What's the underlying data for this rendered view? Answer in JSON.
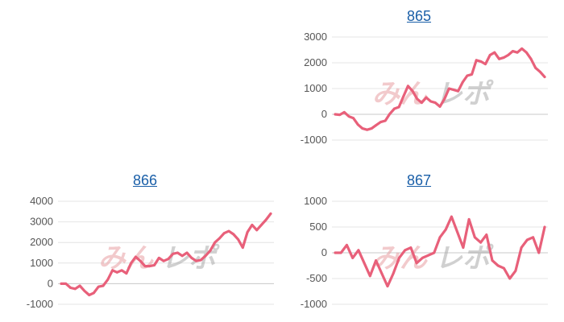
{
  "chart_data": [
    {
      "type": "line",
      "title": "865",
      "ylim": [
        -1000,
        3000
      ],
      "yticks": [
        "-1000",
        "0",
        "1000",
        "2000",
        "3000"
      ],
      "grid": true,
      "series": [
        {
          "values": [
            0,
            -20,
            80,
            -80,
            -150,
            -400,
            -550,
            -600,
            -550,
            -420,
            -300,
            -250,
            20,
            220,
            280,
            700,
            1100,
            900,
            600,
            450,
            650,
            500,
            450,
            300,
            600,
            1000,
            950,
            900,
            1250,
            1500,
            1550,
            2100,
            2050,
            1950,
            2300,
            2400,
            2150,
            2200,
            2300,
            2450,
            2400,
            2550,
            2400,
            2150,
            1800,
            1650,
            1450
          ],
          "color": "#e8607a"
        }
      ]
    },
    {
      "type": "line",
      "title": "866",
      "ylim": [
        -1000,
        4000
      ],
      "yticks": [
        "-1000",
        "0",
        "1000",
        "2000",
        "3000",
        "4000"
      ],
      "grid": true,
      "series": [
        {
          "values": [
            0,
            0,
            -200,
            -250,
            -100,
            -350,
            -550,
            -450,
            -150,
            -100,
            200,
            650,
            550,
            650,
            500,
            1000,
            1300,
            1100,
            850,
            850,
            900,
            1250,
            1100,
            1200,
            1450,
            1500,
            1350,
            1500,
            1250,
            1100,
            1150,
            1350,
            1600,
            2000,
            2200,
            2450,
            2550,
            2400,
            2150,
            1750,
            2500,
            2850,
            2600,
            2850,
            3100,
            3400
          ],
          "color": "#e8607a"
        }
      ]
    },
    {
      "type": "line",
      "title": "867",
      "ylim": [
        -1000,
        1000
      ],
      "yticks": [
        "-1000",
        "-500",
        "0",
        "500",
        "1000"
      ],
      "grid": true,
      "series": [
        {
          "values": [
            0,
            0,
            150,
            -100,
            50,
            -200,
            -450,
            -150,
            -400,
            -650,
            -400,
            -100,
            50,
            100,
            -200,
            -100,
            -50,
            0,
            300,
            450,
            700,
            400,
            100,
            650,
            300,
            200,
            350,
            -150,
            -250,
            -300,
            -500,
            -350,
            100,
            250,
            300,
            0,
            500
          ],
          "color": "#e8607a"
        }
      ]
    }
  ]
}
